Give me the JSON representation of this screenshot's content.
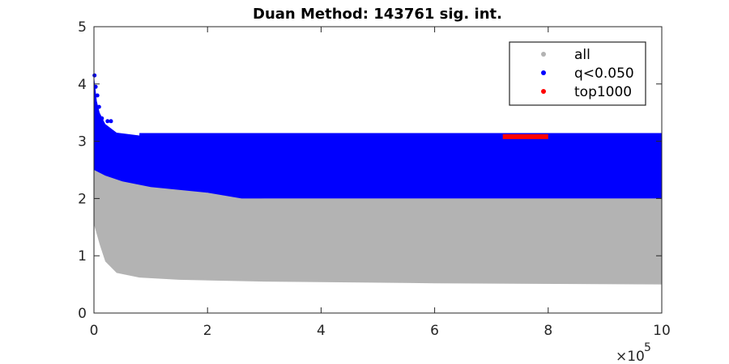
{
  "chart_data": {
    "type": "scatter",
    "title": "Duan Method: 143761 sig. int.",
    "xlabel": "",
    "ylabel": "",
    "xlim": [
      0,
      1000000
    ],
    "ylim": [
      0,
      5
    ],
    "x_ticks": [
      0,
      200000,
      400000,
      600000,
      800000,
      1000000
    ],
    "x_tick_labels": [
      "0",
      "2",
      "4",
      "6",
      "8",
      "10"
    ],
    "x_exponent_label": "×10",
    "x_exponent_power": "5",
    "y_ticks": [
      0,
      1,
      2,
      3,
      4,
      5
    ],
    "y_tick_labels": [
      "0",
      "1",
      "2",
      "3",
      "4",
      "5"
    ],
    "grid": false,
    "legend_position": "top-right",
    "colors": {
      "all": "#b3b3b3",
      "sig": "#0000ff",
      "top": "#ff0000",
      "axis": "#262626"
    },
    "series": [
      {
        "name": "all",
        "description_envelope": "dense band of points, upper edge shown as x/upper pairs, lower edge as x/lower pairs",
        "upper": [
          [
            0,
            3.6
          ],
          [
            20000,
            2.9
          ],
          [
            50000,
            2.6
          ],
          [
            100000,
            2.3
          ],
          [
            200000,
            2.1
          ],
          [
            300000,
            2.0
          ],
          [
            1000000,
            2.0
          ]
        ],
        "lower": [
          [
            0,
            1.55
          ],
          [
            10000,
            1.2
          ],
          [
            20000,
            0.9
          ],
          [
            40000,
            0.7
          ],
          [
            80000,
            0.62
          ],
          [
            150000,
            0.58
          ],
          [
            300000,
            0.55
          ],
          [
            600000,
            0.52
          ],
          [
            1000000,
            0.5
          ]
        ]
      },
      {
        "name": "q<0.050",
        "upper": [
          [
            0,
            4.15
          ],
          [
            5000,
            3.7
          ],
          [
            10000,
            3.5
          ],
          [
            20000,
            3.3
          ],
          [
            40000,
            3.15
          ],
          [
            80000,
            3.1
          ],
          [
            1000000,
            3.1
          ]
        ],
        "lower": [
          [
            0,
            2.5
          ],
          [
            20000,
            2.4
          ],
          [
            50000,
            2.3
          ],
          [
            100000,
            2.2
          ],
          [
            200000,
            2.1
          ],
          [
            260000,
            2.0
          ],
          [
            1000000,
            2.0
          ]
        ]
      },
      {
        "name": "top1000",
        "x_range": [
          720000,
          800000
        ],
        "y": 3.08
      }
    ]
  }
}
